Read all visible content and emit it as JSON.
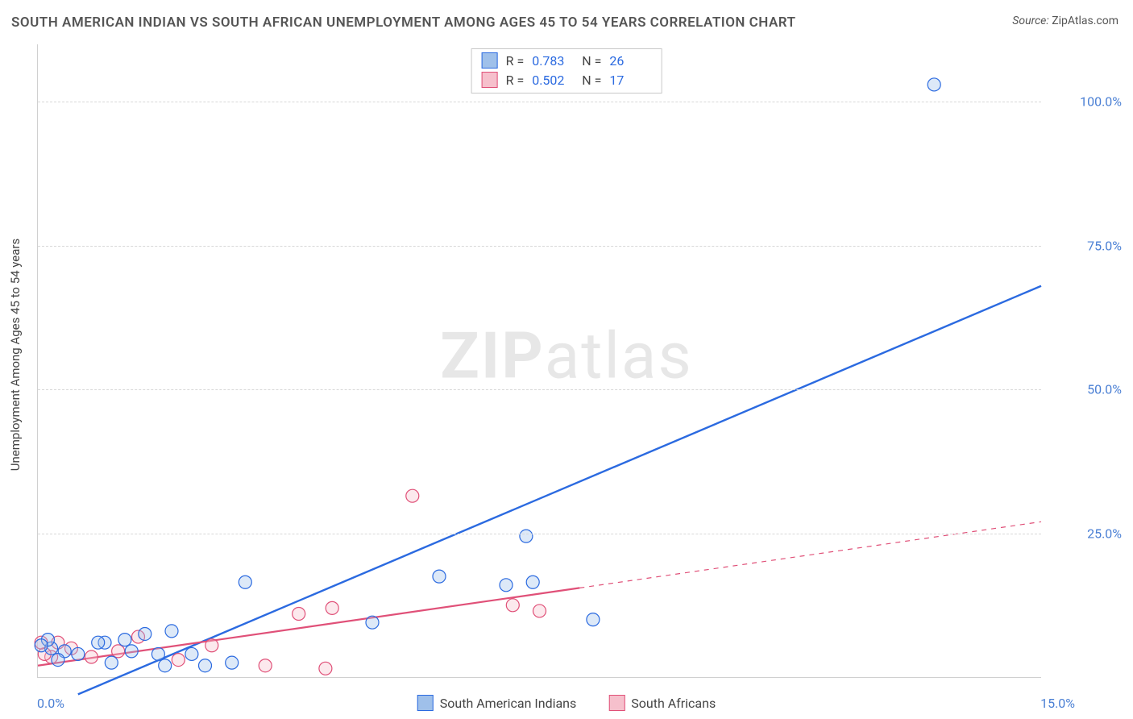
{
  "title": "SOUTH AMERICAN INDIAN VS SOUTH AFRICAN UNEMPLOYMENT AMONG AGES 45 TO 54 YEARS CORRELATION CHART",
  "source_label": "Source:",
  "source_value": "ZipAtlas.com",
  "y_axis_label": "Unemployment Among Ages 45 to 54 years",
  "watermark_bold": "ZIP",
  "watermark_rest": "atlas",
  "colors": {
    "series_a_fill": "#9fc0ea",
    "series_a_stroke": "#2b6ae0",
    "series_b_fill": "#f6c0cc",
    "series_b_stroke": "#e05078",
    "tick_label": "#4a7fd4",
    "grid": "#d8d8d8",
    "text": "#444444",
    "background": "#ffffff",
    "stat_value": "#2b6ae0"
  },
  "stats": {
    "rows": [
      {
        "swatch": "a",
        "R_label": "R  =",
        "R": "0.783",
        "N_label": "N  =",
        "N": "26"
      },
      {
        "swatch": "b",
        "R_label": "R  =",
        "R": "0.502",
        "N_label": "N  =",
        "N": "17"
      }
    ]
  },
  "legend": {
    "a": "South American Indians",
    "b": "South Africans"
  },
  "axes": {
    "xlim": [
      0,
      15
    ],
    "ylim": [
      0,
      110
    ],
    "y_ticks": [
      25,
      50,
      75,
      100
    ],
    "y_tick_labels": [
      "25.0%",
      "50.0%",
      "75.0%",
      "100.0%"
    ],
    "x_tick_left": "0.0%",
    "x_tick_right": "15.0%"
  },
  "chart": {
    "type": "scatter",
    "marker_radius": 8,
    "line_a": {
      "x1": 0.6,
      "y1": -3,
      "x2": 15.0,
      "y2": 68,
      "width": 2.4,
      "dash": "none"
    },
    "line_b_solid": {
      "x1": 0.0,
      "y1": 2.0,
      "x2": 8.1,
      "y2": 15.5,
      "width": 2.2
    },
    "line_b_dash": {
      "x1": 8.1,
      "y1": 15.5,
      "x2": 15.0,
      "y2": 27.0,
      "width": 1.2,
      "dash": "6,6"
    },
    "series_a_points": [
      {
        "x": 13.4,
        "y": 103
      },
      {
        "x": 7.3,
        "y": 24.5
      },
      {
        "x": 6.0,
        "y": 17.5
      },
      {
        "x": 7.0,
        "y": 16.0
      },
      {
        "x": 7.4,
        "y": 16.5
      },
      {
        "x": 8.3,
        "y": 10.0
      },
      {
        "x": 3.1,
        "y": 16.5
      },
      {
        "x": 5.0,
        "y": 9.5
      },
      {
        "x": 2.0,
        "y": 8.0
      },
      {
        "x": 1.6,
        "y": 7.5
      },
      {
        "x": 1.3,
        "y": 6.5
      },
      {
        "x": 1.0,
        "y": 6.0
      },
      {
        "x": 0.9,
        "y": 6.0
      },
      {
        "x": 1.4,
        "y": 4.5
      },
      {
        "x": 1.8,
        "y": 4.0
      },
      {
        "x": 2.3,
        "y": 4.0
      },
      {
        "x": 2.9,
        "y": 2.5
      },
      {
        "x": 0.6,
        "y": 4.0
      },
      {
        "x": 0.4,
        "y": 4.5
      },
      {
        "x": 0.2,
        "y": 5.0
      },
      {
        "x": 0.15,
        "y": 6.5
      },
      {
        "x": 0.3,
        "y": 3.0
      },
      {
        "x": 1.1,
        "y": 2.5
      },
      {
        "x": 1.9,
        "y": 2.0
      },
      {
        "x": 2.5,
        "y": 2.0
      },
      {
        "x": 0.05,
        "y": 5.5
      }
    ],
    "series_b_points": [
      {
        "x": 5.6,
        "y": 31.5
      },
      {
        "x": 7.1,
        "y": 12.5
      },
      {
        "x": 7.5,
        "y": 11.5
      },
      {
        "x": 4.4,
        "y": 12.0
      },
      {
        "x": 3.9,
        "y": 11.0
      },
      {
        "x": 4.3,
        "y": 1.5
      },
      {
        "x": 3.4,
        "y": 2.0
      },
      {
        "x": 2.6,
        "y": 5.5
      },
      {
        "x": 2.1,
        "y": 3.0
      },
      {
        "x": 1.5,
        "y": 7.0
      },
      {
        "x": 1.2,
        "y": 4.5
      },
      {
        "x": 0.8,
        "y": 3.5
      },
      {
        "x": 0.5,
        "y": 5.0
      },
      {
        "x": 0.3,
        "y": 6.0
      },
      {
        "x": 0.2,
        "y": 3.5
      },
      {
        "x": 0.1,
        "y": 4.0
      },
      {
        "x": 0.05,
        "y": 6.0
      }
    ]
  },
  "typography": {
    "title_fontsize": 17,
    "tick_fontsize": 16,
    "axis_label_fontsize": 15,
    "legend_fontsize": 16,
    "watermark_fontsize": 80
  }
}
